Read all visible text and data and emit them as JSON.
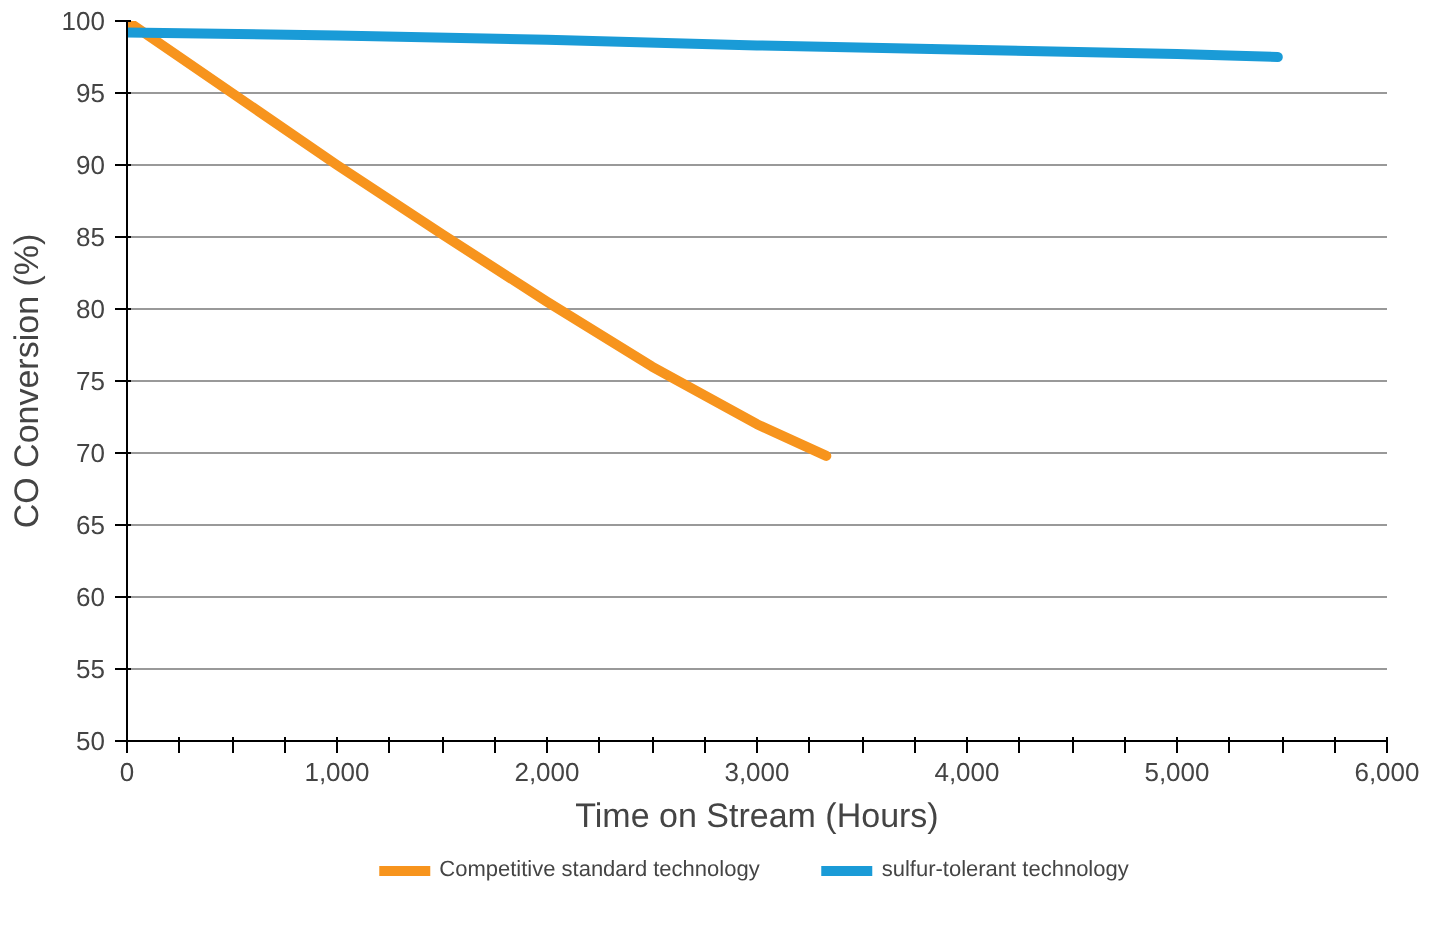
{
  "chart_data": {
    "type": "line",
    "xlabel": "Time on Stream (Hours)",
    "ylabel": "CO Conversion (%)",
    "xlim": [
      0,
      6000
    ],
    "ylim": [
      50,
      100
    ],
    "xticks": [
      {
        "value": 0,
        "label": "0"
      },
      {
        "value": 250,
        "label": null
      },
      {
        "value": 500,
        "label": null
      },
      {
        "value": 750,
        "label": null
      },
      {
        "value": 1000,
        "label": "1,000"
      },
      {
        "value": 1250,
        "label": null
      },
      {
        "value": 1500,
        "label": null
      },
      {
        "value": 1750,
        "label": null
      },
      {
        "value": 2000,
        "label": "2,000"
      },
      {
        "value": 2250,
        "label": null
      },
      {
        "value": 2500,
        "label": null
      },
      {
        "value": 2750,
        "label": null
      },
      {
        "value": 3000,
        "label": "3,000"
      },
      {
        "value": 3250,
        "label": null
      },
      {
        "value": 3500,
        "label": null
      },
      {
        "value": 3750,
        "label": null
      },
      {
        "value": 4000,
        "label": "4,000"
      },
      {
        "value": 4250,
        "label": null
      },
      {
        "value": 4500,
        "label": null
      },
      {
        "value": 4750,
        "label": null
      },
      {
        "value": 5000,
        "label": "5,000"
      },
      {
        "value": 5250,
        "label": null
      },
      {
        "value": 5500,
        "label": null
      },
      {
        "value": 5750,
        "label": null
      },
      {
        "value": 6000,
        "label": "6,000"
      }
    ],
    "yticks": [
      50,
      55,
      60,
      65,
      70,
      75,
      80,
      85,
      90,
      95,
      100
    ],
    "grid": "y",
    "legend": "bottom",
    "line_style": "solid",
    "marker": "none",
    "series": [
      {
        "name": "Competitive standard technology",
        "color": "#f7941d",
        "x": [
          0,
          500,
          1000,
          1500,
          2000,
          2500,
          3000,
          3330
        ],
        "values": [
          100,
          95,
          90,
          85.2,
          80.5,
          76,
          72,
          69.8
        ]
      },
      {
        "name": "sulfur-tolerant technology",
        "color": "#1a9bd7",
        "x": [
          0,
          1000,
          2000,
          3000,
          4000,
          5000,
          5480
        ],
        "values": [
          99.2,
          99,
          98.7,
          98.3,
          98,
          97.7,
          97.5
        ]
      }
    ]
  }
}
